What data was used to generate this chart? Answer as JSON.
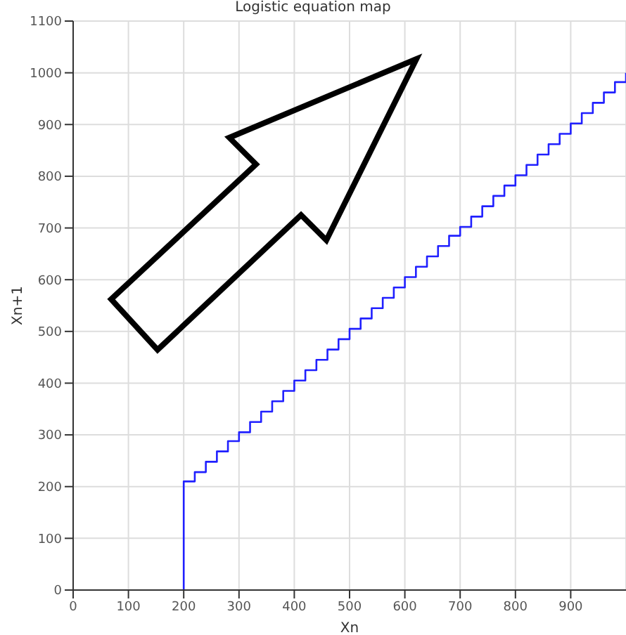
{
  "chart_data": {
    "type": "step",
    "title": "Logistic equation map",
    "xlabel": "Xn",
    "ylabel": "Xn+1",
    "xlim": [
      0,
      1000
    ],
    "xticks": [
      0,
      100,
      200,
      300,
      400,
      500,
      600,
      700,
      800,
      900
    ],
    "ylim": [
      0,
      1100
    ],
    "yticks": [
      0,
      100,
      200,
      300,
      400,
      500,
      600,
      700,
      800,
      900,
      1000,
      1100
    ],
    "grid": true,
    "legend": false,
    "marker": "none",
    "line_style": "solid",
    "series": [
      {
        "color": "#2020ff",
        "x": [
          200,
          200,
          220,
          240,
          260,
          280,
          300,
          320,
          340,
          360,
          380,
          400,
          420,
          440,
          460,
          480,
          500,
          520,
          540,
          560,
          580,
          600,
          620,
          640,
          660,
          680,
          700,
          720,
          740,
          760,
          780,
          800,
          820,
          840,
          860,
          880,
          900,
          920,
          940,
          960,
          980,
          1000
        ],
        "values": [
          0,
          210,
          228,
          248,
          268,
          288,
          305,
          325,
          345,
          365,
          385,
          405,
          425,
          445,
          465,
          485,
          505,
          525,
          545,
          565,
          585,
          605,
          625,
          645,
          665,
          685,
          702,
          722,
          742,
          762,
          782,
          802,
          822,
          842,
          862,
          882,
          902,
          922,
          942,
          962,
          982,
          1000
        ]
      }
    ]
  }
}
